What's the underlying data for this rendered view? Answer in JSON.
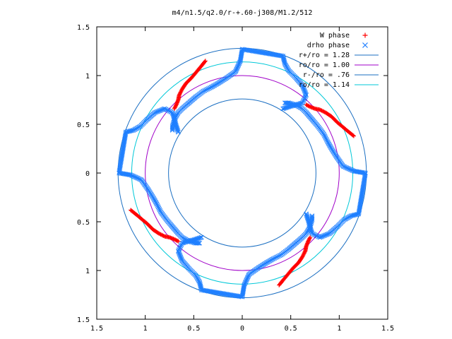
{
  "chart_data": {
    "type": "scatter",
    "title": "m4/n1.5/q2.0/r-+.60-j308/M1.2/512",
    "xlabel": "",
    "ylabel": "",
    "xlim": [
      -1.5,
      1.5
    ],
    "ylim": [
      -1.5,
      1.5
    ],
    "xticks": [
      -1.5,
      -1,
      -0.5,
      0,
      0.5,
      1,
      1.5
    ],
    "yticks": [
      -1.5,
      -1,
      -0.5,
      0,
      0.5,
      1,
      1.5
    ],
    "xtick_labels": [
      "1.5",
      "1",
      "0.5",
      "0",
      "0.5",
      "1",
      "1.5"
    ],
    "ytick_labels": [
      "1.5",
      "1",
      "0.5",
      "0",
      "0.5",
      "1",
      "1.5"
    ],
    "grid": false,
    "legend_position": "top-right",
    "symmetry_m": 4,
    "W_phase_arm": [
      [
        0.66,
        0.7
      ],
      [
        0.7,
        0.68
      ],
      [
        0.75,
        0.66
      ],
      [
        0.8,
        0.65
      ],
      [
        0.86,
        0.62
      ],
      [
        0.92,
        0.58
      ],
      [
        0.98,
        0.52
      ],
      [
        1.04,
        0.47
      ],
      [
        1.1,
        0.42
      ],
      [
        1.15,
        0.38
      ]
    ],
    "drho_phase_arm": [
      [
        0.42,
        0.66
      ],
      [
        0.48,
        0.68
      ],
      [
        0.56,
        0.7
      ],
      [
        0.62,
        0.72
      ],
      [
        0.66,
        0.8
      ],
      [
        0.62,
        0.9
      ],
      [
        0.55,
        0.98
      ],
      [
        0.48,
        1.05
      ],
      [
        0.44,
        1.12
      ],
      [
        0.42,
        1.2
      ],
      [
        0.0,
        1.27
      ],
      [
        -0.02,
        1.15
      ],
      [
        -0.07,
        1.04
      ],
      [
        -0.17,
        0.97
      ],
      [
        -0.25,
        0.92
      ],
      [
        -0.32,
        0.88
      ],
      [
        -0.4,
        0.84
      ],
      [
        -0.48,
        0.78
      ],
      [
        -0.55,
        0.72
      ],
      [
        -0.62,
        0.66
      ],
      [
        -0.66,
        0.62
      ],
      [
        -0.7,
        0.55
      ],
      [
        -0.72,
        0.48
      ],
      [
        -0.72,
        0.44
      ]
    ],
    "series": [
      {
        "name": "W phase",
        "marker": "+",
        "color": "#ff0000"
      },
      {
        "name": "drho phase",
        "marker": "x",
        "color": "#1e7fff"
      },
      {
        "name": "r+/ro = 1.28",
        "type": "circle",
        "radius": 1.28,
        "color": "#1b6fc2"
      },
      {
        "name": "ro/ro = 1.00",
        "type": "circle",
        "radius": 1.0,
        "color": "#a000c8"
      },
      {
        "name": "r-/ro = .76",
        "type": "circle",
        "radius": 0.76,
        "color": "#1b6fc2"
      },
      {
        "name": "ro/ro = 1.14",
        "type": "circle",
        "radius": 1.14,
        "color": "#00c8d8"
      }
    ]
  }
}
